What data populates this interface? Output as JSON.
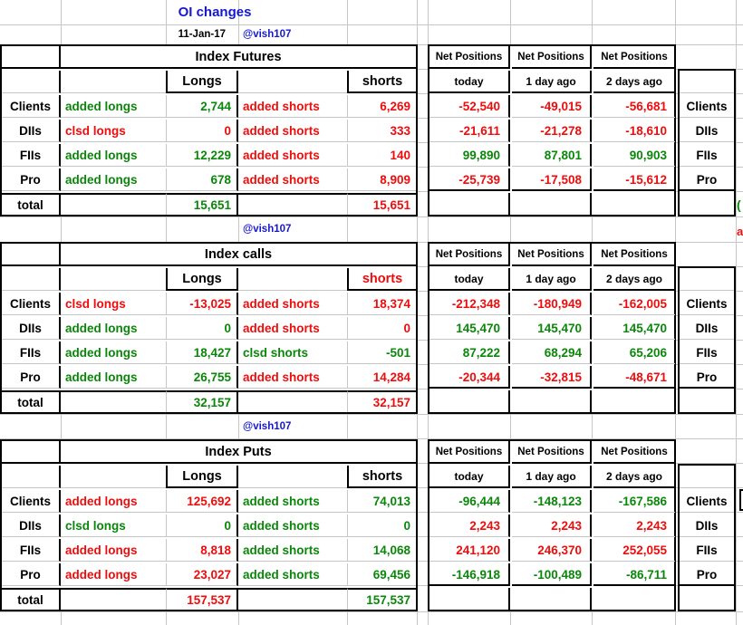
{
  "header": {
    "title": "OI changes",
    "date": "11-Jan-17",
    "handle": "@vish107"
  },
  "columns": {
    "net_title": "Net Positions",
    "net_subs": [
      "today",
      "1 day ago",
      "2 days ago"
    ],
    "longs": "Longs",
    "shorts": "shorts",
    "total_label": "total"
  },
  "colors": {
    "green": "#0a870a",
    "red": "#ee0d0d",
    "blue": "#1518d1",
    "black": "#000000",
    "grid": "#c6c6c6"
  },
  "fragments": {
    "green_glyph": "(",
    "red_glyph": "a"
  },
  "sections": [
    {
      "title": "Index Futures",
      "handle_above": "",
      "header_colors": {
        "longs": "k",
        "shorts": "k"
      },
      "rows": [
        {
          "label": "Clients",
          "cells": [
            {
              "t": "added longs",
              "c": "g"
            },
            {
              "t": "2,744",
              "c": "g"
            },
            {
              "t": "added shorts",
              "c": "r"
            },
            {
              "t": "6,269",
              "c": "r"
            }
          ],
          "net": [
            {
              "t": "-52,540",
              "c": "r"
            },
            {
              "t": "-49,015",
              "c": "r"
            },
            {
              "t": "-56,681",
              "c": "r"
            }
          ]
        },
        {
          "label": "DIIs",
          "cells": [
            {
              "t": "clsd longs",
              "c": "r"
            },
            {
              "t": "0",
              "c": "r"
            },
            {
              "t": "added shorts",
              "c": "r"
            },
            {
              "t": "333",
              "c": "r"
            }
          ],
          "net": [
            {
              "t": "-21,611",
              "c": "r"
            },
            {
              "t": "-21,278",
              "c": "r"
            },
            {
              "t": "-18,610",
              "c": "r"
            }
          ]
        },
        {
          "label": "FIIs",
          "cells": [
            {
              "t": "added longs",
              "c": "g"
            },
            {
              "t": "12,229",
              "c": "g"
            },
            {
              "t": "added shorts",
              "c": "r"
            },
            {
              "t": "140",
              "c": "r"
            }
          ],
          "net": [
            {
              "t": "99,890",
              "c": "g"
            },
            {
              "t": "87,801",
              "c": "g"
            },
            {
              "t": "90,903",
              "c": "g"
            }
          ]
        },
        {
          "label": "Pro",
          "cells": [
            {
              "t": "added longs",
              "c": "g"
            },
            {
              "t": "678",
              "c": "g"
            },
            {
              "t": "added shorts",
              "c": "r"
            },
            {
              "t": "8,909",
              "c": "r"
            }
          ],
          "net": [
            {
              "t": "-25,739",
              "c": "r"
            },
            {
              "t": "-17,508",
              "c": "r"
            },
            {
              "t": "-15,612",
              "c": "r"
            }
          ]
        }
      ],
      "total": {
        "longs": {
          "t": "15,651",
          "c": "g"
        },
        "shorts": {
          "t": "15,651",
          "c": "r"
        }
      }
    },
    {
      "title": "Index calls",
      "handle_above": "@vish107",
      "header_colors": {
        "longs": "k",
        "shorts": "r"
      },
      "rows": [
        {
          "label": "Clients",
          "cells": [
            {
              "t": "clsd longs",
              "c": "r"
            },
            {
              "t": "-13,025",
              "c": "r"
            },
            {
              "t": "added shorts",
              "c": "r"
            },
            {
              "t": "18,374",
              "c": "r"
            }
          ],
          "net": [
            {
              "t": "-212,348",
              "c": "r"
            },
            {
              "t": "-180,949",
              "c": "r"
            },
            {
              "t": "-162,005",
              "c": "r"
            }
          ]
        },
        {
          "label": "DIIs",
          "cells": [
            {
              "t": "added longs",
              "c": "g"
            },
            {
              "t": "0",
              "c": "g"
            },
            {
              "t": "added shorts",
              "c": "r"
            },
            {
              "t": "0",
              "c": "r"
            }
          ],
          "net": [
            {
              "t": "145,470",
              "c": "g"
            },
            {
              "t": "145,470",
              "c": "g"
            },
            {
              "t": "145,470",
              "c": "g"
            }
          ]
        },
        {
          "label": "FIIs",
          "cells": [
            {
              "t": "added longs",
              "c": "g"
            },
            {
              "t": "18,427",
              "c": "g"
            },
            {
              "t": "clsd shorts",
              "c": "g"
            },
            {
              "t": "-501",
              "c": "g"
            }
          ],
          "net": [
            {
              "t": "87,222",
              "c": "g"
            },
            {
              "t": "68,294",
              "c": "g"
            },
            {
              "t": "65,206",
              "c": "g"
            }
          ]
        },
        {
          "label": "Pro",
          "cells": [
            {
              "t": "added longs",
              "c": "g"
            },
            {
              "t": "26,755",
              "c": "g"
            },
            {
              "t": "added shorts",
              "c": "r"
            },
            {
              "t": "14,284",
              "c": "r"
            }
          ],
          "net": [
            {
              "t": "-20,344",
              "c": "r"
            },
            {
              "t": "-32,815",
              "c": "r"
            },
            {
              "t": "-48,671",
              "c": "r"
            }
          ]
        }
      ],
      "total": {
        "longs": {
          "t": "32,157",
          "c": "g"
        },
        "shorts": {
          "t": "32,157",
          "c": "r"
        }
      }
    },
    {
      "title": "Index Puts",
      "handle_above": "@vish107",
      "header_colors": {
        "longs": "k",
        "shorts": "k"
      },
      "rows": [
        {
          "label": "Clients",
          "cells": [
            {
              "t": "added longs",
              "c": "r"
            },
            {
              "t": "125,692",
              "c": "r"
            },
            {
              "t": "added shorts",
              "c": "g"
            },
            {
              "t": "74,013",
              "c": "g"
            }
          ],
          "net": [
            {
              "t": "-96,444",
              "c": "g"
            },
            {
              "t": "-148,123",
              "c": "g"
            },
            {
              "t": "-167,586",
              "c": "g"
            }
          ]
        },
        {
          "label": "DIIs",
          "cells": [
            {
              "t": "clsd longs",
              "c": "g"
            },
            {
              "t": "0",
              "c": "g"
            },
            {
              "t": "added shorts",
              "c": "g"
            },
            {
              "t": "0",
              "c": "g"
            }
          ],
          "net": [
            {
              "t": "2,243",
              "c": "r"
            },
            {
              "t": "2,243",
              "c": "r"
            },
            {
              "t": "2,243",
              "c": "r"
            }
          ]
        },
        {
          "label": "FIIs",
          "cells": [
            {
              "t": "added longs",
              "c": "r"
            },
            {
              "t": "8,818",
              "c": "r"
            },
            {
              "t": "added shorts",
              "c": "g"
            },
            {
              "t": "14,068",
              "c": "g"
            }
          ],
          "net": [
            {
              "t": "241,120",
              "c": "r"
            },
            {
              "t": "246,370",
              "c": "r"
            },
            {
              "t": "252,055",
              "c": "r"
            }
          ]
        },
        {
          "label": "Pro",
          "cells": [
            {
              "t": "added longs",
              "c": "r"
            },
            {
              "t": "23,027",
              "c": "r"
            },
            {
              "t": "added shorts",
              "c": "g"
            },
            {
              "t": "69,456",
              "c": "g"
            }
          ],
          "net": [
            {
              "t": "-146,918",
              "c": "g"
            },
            {
              "t": "-100,489",
              "c": "g"
            },
            {
              "t": "-86,711",
              "c": "g"
            }
          ]
        }
      ],
      "total": {
        "longs": {
          "t": "157,537",
          "c": "r"
        },
        "shorts": {
          "t": "157,537",
          "c": "g"
        }
      }
    }
  ]
}
